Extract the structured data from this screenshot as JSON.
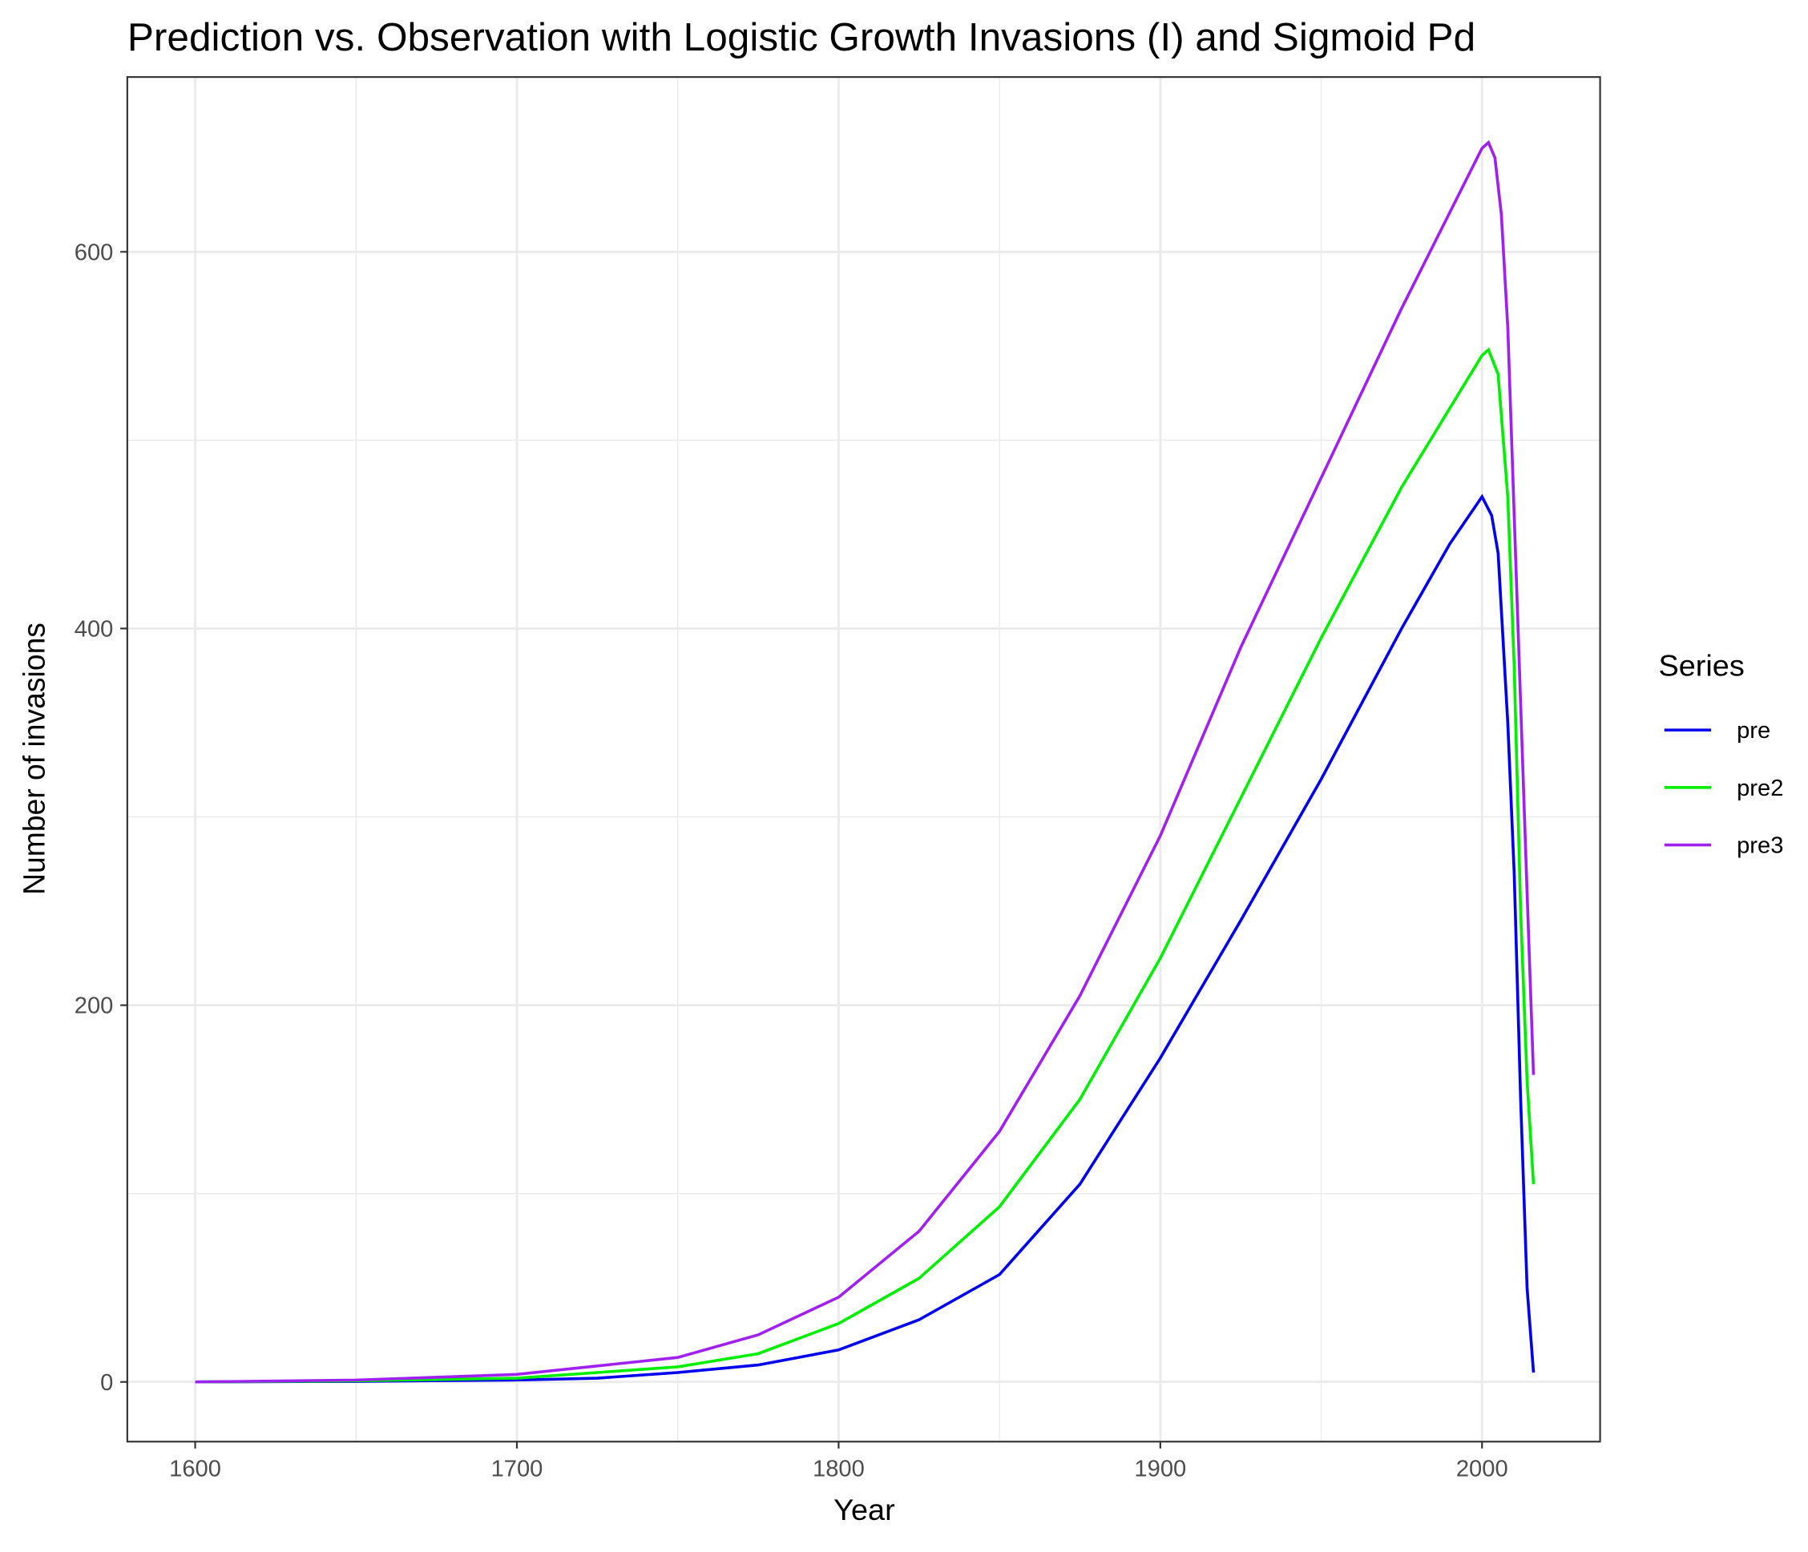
{
  "chart_data": {
    "type": "line",
    "title": "Prediction vs. Observation with Logistic Growth Invasions (I) and Sigmoid Pd",
    "x_label": "Year",
    "y_label": "Number of invasions",
    "legend_title": "Series",
    "legend_position": "right",
    "grid": true,
    "xlim": [
      1578.9,
      2036.7
    ],
    "ylim": [
      -31.7,
      692.8
    ],
    "xticks": [
      1600,
      1700,
      1800,
      1900,
      2000
    ],
    "yticks": [
      0,
      200,
      400,
      600
    ],
    "series": [
      {
        "name": "pre",
        "color": "#0000ee",
        "x": [
          1600,
          1650,
          1700,
          1725,
          1750,
          1775,
          1800,
          1825,
          1850,
          1875,
          1900,
          1925,
          1950,
          1975,
          1990,
          2000,
          2003,
          2005,
          2008,
          2010,
          2012,
          2014,
          2016
        ],
        "values": [
          0,
          0.3,
          1,
          2,
          5,
          9,
          17,
          33,
          57,
          105,
          172,
          245,
          320,
          400,
          445,
          470,
          460,
          440,
          350,
          270,
          150,
          50,
          5
        ]
      },
      {
        "name": "pre2",
        "color": "#00ee00",
        "x": [
          1600,
          1650,
          1700,
          1750,
          1775,
          1800,
          1825,
          1850,
          1875,
          1900,
          1925,
          1950,
          1975,
          2000,
          2002,
          2005,
          2008,
          2010,
          2012,
          2014,
          2016
        ],
        "values": [
          0,
          0.6,
          2,
          8,
          15,
          31,
          55,
          93,
          150,
          225,
          310,
          395,
          475,
          545,
          548,
          535,
          470,
          380,
          250,
          160,
          105
        ]
      },
      {
        "name": "pre3",
        "color": "#a020f0",
        "x": [
          1600,
          1650,
          1700,
          1750,
          1775,
          1800,
          1825,
          1850,
          1875,
          1900,
          1925,
          1950,
          1975,
          2000,
          2002,
          2004,
          2006,
          2008,
          2010,
          2012,
          2014,
          2016
        ],
        "values": [
          0,
          1,
          4,
          13,
          25,
          45,
          80,
          133,
          205,
          290,
          390,
          480,
          570,
          655,
          658,
          650,
          620,
          560,
          460,
          360,
          260,
          163
        ]
      }
    ]
  }
}
